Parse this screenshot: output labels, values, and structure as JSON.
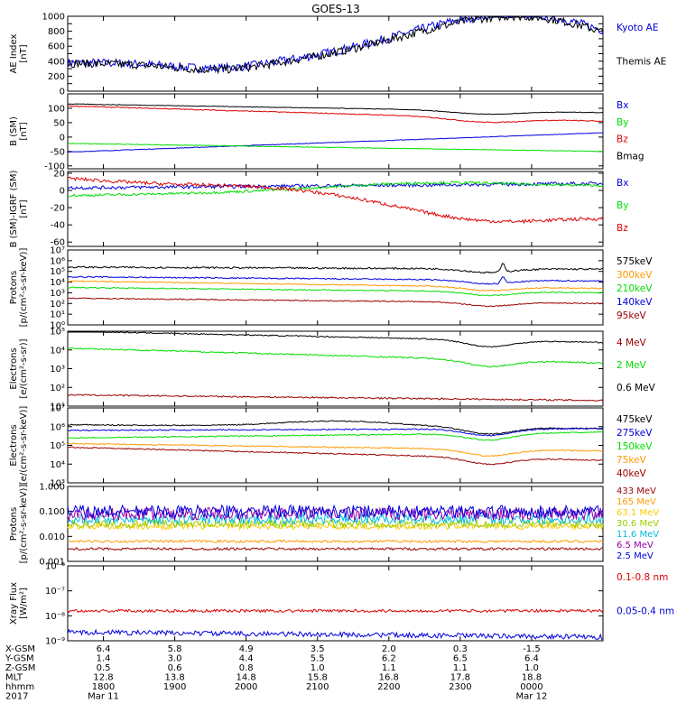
{
  "title": "GOES-13",
  "colors": {
    "black": "#000000",
    "blue": "#0000dd",
    "red": "#dd0000",
    "green": "#00dd00",
    "orange": "#ff9900",
    "cyan": "#00bbdd",
    "yellowgreen": "#99cc00",
    "darkred": "#990000",
    "purple": "#9900aa",
    "gold": "#ffcc00"
  },
  "chart_data": [
    {
      "type": "line",
      "id": "ae",
      "ylabel": "AE Index\n[nT]",
      "yscale": "linear",
      "ylim": [
        0,
        1000
      ],
      "yticks": [
        0,
        100,
        200,
        300,
        400,
        500,
        600,
        700,
        800,
        900,
        1000
      ],
      "ytick_labels": [
        "0",
        "",
        "200",
        "",
        "400",
        "",
        "600",
        "",
        "800",
        "",
        "1000"
      ],
      "grid": false,
      "series": [
        {
          "name": "Kyoto AE",
          "color": "blue",
          "level": 380,
          "noise": 60,
          "bumps": [
            [
              4,
              90,
              -150
            ],
            [
              14,
              80,
              110
            ],
            [
              22.3,
              90,
              180
            ],
            [
              19.6,
              55,
              -80
            ],
            [
              23.8,
              100,
              460
            ],
            [
              24.6,
              100,
              160
            ]
          ]
        },
        {
          "name": "Themis AE",
          "color": "black",
          "level": 370,
          "noise": 55,
          "bumps": [
            [
              4,
              90,
              -140
            ],
            [
              14,
              80,
              100
            ],
            [
              22.3,
              90,
              170
            ],
            [
              19.6,
              55,
              -90
            ],
            [
              23.8,
              100,
              440
            ],
            [
              24.6,
              100,
              160
            ]
          ]
        }
      ]
    },
    {
      "type": "line",
      "id": "bsm",
      "ylabel": "B (SM)\n[nT]",
      "yscale": "linear",
      "ylim": [
        -110,
        150
      ],
      "yticks": [
        -100,
        -50,
        0,
        50,
        100
      ],
      "ytick_labels": [
        "-100",
        "-50",
        "0",
        "50",
        "100"
      ],
      "grid": false,
      "series": [
        {
          "name": "Bx",
          "color": "blue",
          "start": -52,
          "end": 15,
          "noise": 1
        },
        {
          "name": "By",
          "color": "green",
          "start": -22,
          "end": -50,
          "noise": 1
        },
        {
          "name": "Bz",
          "color": "red",
          "start": 108,
          "end": 55,
          "noise": 1.5,
          "bumps": [
            [
              23.35,
              40,
              -15
            ]
          ]
        },
        {
          "name": "Bmag",
          "color": "black",
          "start": 115,
          "end": 85,
          "noise": 1,
          "bumps": [
            [
              23.35,
              40,
              -12
            ]
          ]
        }
      ]
    },
    {
      "type": "line",
      "id": "bsmigrf",
      "ylabel": "B (SM)-IGRF (SM)\n[nT]",
      "yscale": "linear",
      "ylim": [
        -65,
        22
      ],
      "yticks": [
        -60,
        -40,
        -20,
        0,
        20
      ],
      "ytick_labels": [
        "-60",
        "-40",
        "-20",
        "0",
        "20"
      ],
      "grid": false,
      "series": [
        {
          "name": "Bx",
          "color": "blue",
          "start": 3,
          "end": 8,
          "noise": 2
        },
        {
          "name": "By",
          "color": "green",
          "start": -6,
          "end": 4,
          "noise": 1.5,
          "bumps": [
            [
              22.5,
              120,
              8
            ]
          ]
        },
        {
          "name": "Bz",
          "color": "red",
          "start": 14,
          "end": -30,
          "noise": 2,
          "bumps": [
            [
              23.3,
              80,
              -15
            ],
            [
              20.4,
              80,
              6
            ]
          ]
        }
      ]
    },
    {
      "type": "line",
      "id": "protons1",
      "ylabel": "Protons\n[p/(cm²-s-sr-keV)]",
      "yscale": "log",
      "ylim": [
        1,
        10000000.0
      ],
      "yticks": [
        1,
        10,
        100,
        1000,
        10000,
        100000,
        1000000,
        10000000
      ],
      "ytick_labels": [
        "10⁰",
        "10¹",
        "10²",
        "10³",
        "10⁴",
        "10⁵",
        "10⁶",
        "10⁷"
      ],
      "grid": false,
      "series": [
        {
          "name": "575keV",
          "color": "black",
          "start": 5.4,
          "end": 5.2,
          "noise": 0.08,
          "dip": true,
          "spike": [
            23.6,
            0.8
          ]
        },
        {
          "name": "300keV",
          "color": "orange",
          "start": 4.1,
          "end": 3.4,
          "noise": 0.05,
          "dip": true
        },
        {
          "name": "210keV",
          "color": "green",
          "start": 3.5,
          "end": 3.0,
          "noise": 0.05,
          "dip": true
        },
        {
          "name": "140keV",
          "color": "blue",
          "start": 4.5,
          "end": 4.1,
          "noise": 0.06,
          "dip": true,
          "spike": [
            23.6,
            0.6
          ]
        },
        {
          "name": "95keV",
          "color": "darkred",
          "start": 2.5,
          "end": 2.0,
          "noise": 0.05,
          "dip": true
        }
      ]
    },
    {
      "type": "line",
      "id": "electrons1",
      "ylabel": "Electrons\n[e/(cm²-s-sr)]",
      "yscale": "log",
      "ylim": [
        10,
        100000
      ],
      "yticks": [
        10,
        100,
        1000,
        10000,
        100000
      ],
      "ytick_labels": [
        "10¹",
        "10²",
        "10³",
        "10⁴",
        "10⁵"
      ],
      "grid": false,
      "series": [
        {
          "name": "4 MeV",
          "color": "darkred",
          "start": 1.6,
          "end": 1.3,
          "noise": 0.04
        },
        {
          "name": "2 MeV",
          "color": "green",
          "start": 4.1,
          "end": 3.3,
          "noise": 0.04,
          "dip": true
        },
        {
          "name": "0.6 MeV",
          "color": "black",
          "start": 5.0,
          "end": 4.4,
          "noise": 0.03,
          "dip": true
        }
      ]
    },
    {
      "type": "line",
      "id": "electrons2",
      "ylabel": "Electrons\n[e/(cm²-s-sr-keV)]",
      "yscale": "log",
      "ylim": [
        1000,
        10000000
      ],
      "yticks": [
        1000,
        10000,
        100000,
        1000000,
        10000000
      ],
      "ytick_labels": [
        "10³",
        "10⁴",
        "10⁵",
        "10⁶",
        "10⁷"
      ],
      "grid": false,
      "series": [
        {
          "name": "475keV",
          "color": "black",
          "start": 6.1,
          "end": 5.9,
          "noise": 0.03,
          "dip": true,
          "bumps": [
            [
              21.3,
              70,
              0.3
            ]
          ]
        },
        {
          "name": "275keV",
          "color": "blue",
          "start": 5.8,
          "end": 5.9,
          "noise": 0.03,
          "dip": true
        },
        {
          "name": "150keV",
          "color": "green",
          "start": 5.4,
          "end": 5.7,
          "noise": 0.03,
          "dip": true
        },
        {
          "name": "75keV",
          "color": "orange",
          "start": 5.1,
          "end": 4.7,
          "noise": 0.03,
          "dip": true
        },
        {
          "name": "40keV",
          "color": "darkred",
          "start": 4.9,
          "end": 4.2,
          "noise": 0.03,
          "dip": true
        }
      ]
    },
    {
      "type": "line",
      "id": "protons2",
      "ylabel": "Protons\n[p/(cm²-s-sr-keV)]",
      "yscale": "log",
      "ylim": [
        0.001,
        1.0
      ],
      "yticks": [
        0.001,
        0.01,
        0.1,
        1.0
      ],
      "ytick_labels": [
        "0.001",
        "0.010",
        "0.100",
        "1.000"
      ],
      "grid": false,
      "series": [
        {
          "name": "433 MeV",
          "color": "darkred",
          "start": -2.5,
          "end": -2.5,
          "noise": 0.05
        },
        {
          "name": "165 MeV",
          "color": "orange",
          "start": -2.2,
          "end": -2.2,
          "noise": 0.05
        },
        {
          "name": "63.1 MeV",
          "color": "gold",
          "start": -1.6,
          "end": -1.6,
          "noise": 0.12
        },
        {
          "name": "30.6 MeV",
          "color": "yellowgreen",
          "start": -1.5,
          "end": -1.5,
          "noise": 0.15
        },
        {
          "name": "11.6 MeV",
          "color": "cyan",
          "start": -1.3,
          "end": -1.3,
          "noise": 0.2
        },
        {
          "name": "6.5 MeV",
          "color": "purple",
          "start": -1.1,
          "end": -1.1,
          "noise": 0.25
        },
        {
          "name": "2.5 MeV",
          "color": "blue",
          "start": -1.0,
          "end": -1.0,
          "noise": 0.25
        }
      ]
    },
    {
      "type": "line",
      "id": "xray",
      "ylabel": "Xray Flux\n[W/m²]",
      "yscale": "log",
      "ylim": [
        1e-09,
        1e-06
      ],
      "yticks": [
        1e-09,
        1e-08,
        1e-07,
        1e-06
      ],
      "ytick_labels": [
        "10⁻⁹",
        "10⁻⁸",
        "10⁻⁷",
        "10⁻⁶"
      ],
      "grid": false,
      "series": [
        {
          "name": "0.1-0.8 nm",
          "color": "red",
          "start": -7.8,
          "end": -7.8,
          "noise": 0.06
        },
        {
          "name": "0.05-0.4 nm",
          "color": "blue",
          "start": -8.65,
          "end": -8.85,
          "noise": 0.1
        }
      ]
    }
  ],
  "xaxis": {
    "range_hours": [
      17.5,
      25.0
    ],
    "rows": [
      {
        "label": "X-GSM",
        "values": [
          "6.4",
          "5.8",
          "4.9",
          "3.5",
          "2.0",
          "0.3",
          "-1.5"
        ]
      },
      {
        "label": "Y-GSM",
        "values": [
          "1.4",
          "3.0",
          "4.4",
          "5.5",
          "6.2",
          "6.5",
          "6.4"
        ]
      },
      {
        "label": "Z-GSM",
        "values": [
          "0.5",
          "0.6",
          "0.8",
          "1.0",
          "1.1",
          "1.1",
          "1.0"
        ]
      },
      {
        "label": "MLT",
        "values": [
          "12.8",
          "13.8",
          "14.8",
          "15.8",
          "16.8",
          "17.8",
          "18.8"
        ]
      },
      {
        "label": "hhmm",
        "values": [
          "1800",
          "1900",
          "2000",
          "2100",
          "2200",
          "2300",
          "0000"
        ]
      },
      {
        "label": "2017",
        "values": [
          "Mar 11",
          "",
          "",
          "",
          "",
          "",
          "Mar 12"
        ]
      }
    ]
  }
}
